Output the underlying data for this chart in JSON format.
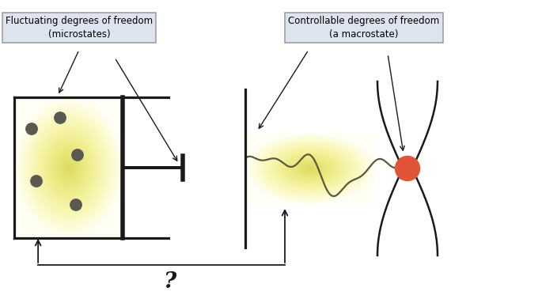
{
  "fig_width": 6.85,
  "fig_height": 3.73,
  "dpi": 100,
  "bg_color": "#ffffff",
  "label_box1_text": "Fluctuating degrees of freedom\n(microstates)",
  "label_box2_text": "Controllable degrees of freedom\n(a macrostate)",
  "label_box_facecolor": "#dde3ef",
  "label_box_edgecolor": "#999999",
  "question_mark": "?",
  "particle_color": "#595950",
  "wavy_color": "#5a5a3a",
  "red_circle_color": "#e05535",
  "line_color": "#1a1a1a",
  "lw": 1.8
}
